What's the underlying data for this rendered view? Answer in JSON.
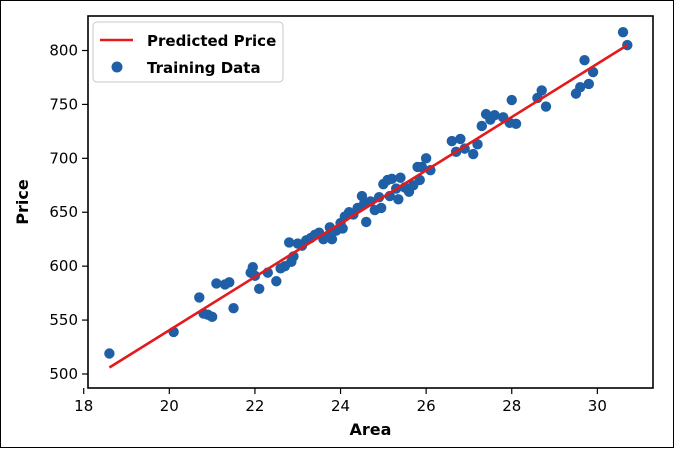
{
  "chart_data": {
    "type": "scatter",
    "xlabel": "Area",
    "ylabel": "Price",
    "xlim": [
      18.1,
      31.3
    ],
    "ylim": [
      487,
      832
    ],
    "xticks": [
      18,
      20,
      22,
      24,
      26,
      28,
      30
    ],
    "yticks": [
      500,
      550,
      600,
      650,
      700,
      750,
      800
    ],
    "legend": {
      "position": "top-left",
      "entries": [
        {
          "label": "Predicted Price",
          "kind": "line",
          "color": "#e41a1c"
        },
        {
          "label": "Training Data",
          "kind": "marker",
          "color": "#1f5fa6"
        }
      ]
    },
    "grid": false,
    "series": [
      {
        "name": "Predicted Price",
        "kind": "line",
        "color": "#e41a1c",
        "x": [
          18.6,
          30.7
        ],
        "y": [
          506,
          805
        ]
      },
      {
        "name": "Training Data",
        "kind": "scatter",
        "color": "#1f5fa6",
        "x": [
          18.6,
          20.1,
          20.7,
          20.8,
          20.9,
          21.0,
          21.1,
          21.3,
          21.4,
          21.5,
          21.9,
          21.95,
          22.0,
          22.1,
          22.3,
          22.5,
          22.6,
          22.7,
          22.8,
          22.85,
          22.9,
          23.0,
          23.1,
          23.2,
          23.3,
          23.4,
          23.5,
          23.6,
          23.7,
          23.75,
          23.8,
          23.9,
          24.0,
          24.05,
          24.1,
          24.2,
          24.3,
          24.4,
          24.5,
          24.55,
          24.6,
          24.7,
          24.8,
          24.9,
          24.95,
          25.0,
          25.1,
          25.15,
          25.2,
          25.3,
          25.35,
          25.4,
          25.5,
          25.6,
          25.7,
          25.8,
          25.85,
          25.9,
          26.0,
          26.1,
          26.6,
          26.7,
          26.8,
          26.9,
          27.1,
          27.2,
          27.3,
          27.4,
          27.5,
          27.6,
          27.8,
          27.95,
          28.0,
          28.1,
          28.6,
          28.7,
          28.8,
          29.5,
          29.6,
          29.7,
          29.8,
          29.9,
          30.6,
          30.7
        ],
        "y": [
          519,
          539,
          571,
          556,
          555,
          553,
          584,
          583,
          585,
          561,
          594,
          599,
          591,
          579,
          594,
          586,
          598,
          600,
          622,
          604,
          609,
          621,
          619,
          624,
          626,
          629,
          631,
          625,
          628,
          636,
          625,
          633,
          640,
          635,
          646,
          650,
          648,
          654,
          665,
          658,
          641,
          660,
          652,
          664,
          654,
          676,
          680,
          665,
          681,
          672,
          662,
          682,
          673,
          669,
          675,
          692,
          680,
          692,
          700,
          689,
          716,
          706,
          718,
          709,
          704,
          713,
          730,
          741,
          736,
          740,
          738,
          733,
          754,
          732,
          756,
          763,
          748,
          760,
          766,
          791,
          769,
          780,
          817,
          805
        ]
      }
    ]
  }
}
